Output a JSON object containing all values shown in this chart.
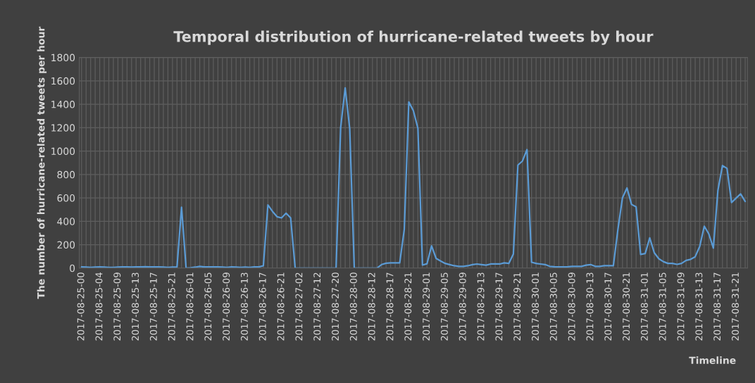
{
  "chart_data": {
    "type": "line",
    "title": "Temporal distribution of hurricane-related tweets by hour",
    "xlabel": "Timeline",
    "ylabel": "The number of hurricane-related tweets per hour",
    "categories": [
      "2017-08-25-00",
      null,
      null,
      null,
      "2017-08-25-04",
      null,
      null,
      null,
      "2017-08-25-09",
      null,
      null,
      null,
      "2017-08-25-13",
      null,
      null,
      null,
      "2017-08-25-17",
      null,
      null,
      null,
      "2017-08-25-21",
      null,
      null,
      null,
      "2017-08-26-01",
      null,
      null,
      null,
      "2017-08-26-05",
      null,
      null,
      null,
      "2017-08-26-09",
      null,
      null,
      null,
      "2017-08-26-13",
      null,
      null,
      null,
      "2017-08-26-17",
      null,
      null,
      null,
      "2017-08-26-21",
      null,
      null,
      null,
      "2017-08-27-02",
      null,
      null,
      null,
      "2017-08-27-12",
      null,
      null,
      null,
      "2017-08-27-20",
      null,
      null,
      null,
      "2017-08-28-00",
      null,
      null,
      null,
      "2017-08-28-12",
      null,
      null,
      null,
      "2017-08-28-17",
      null,
      null,
      null,
      "2017-08-28-21",
      null,
      null,
      null,
      "2017-08-29-01",
      null,
      null,
      null,
      "2017-08-29-05",
      null,
      null,
      null,
      "2017-08-29-09",
      null,
      null,
      null,
      "2017-08-29-13",
      null,
      null,
      null,
      "2017-08-29-17",
      null,
      null,
      null,
      "2017-08-29-21",
      null,
      null,
      null,
      "2017-08-30-01",
      null,
      null,
      null,
      "2017-08-30-05",
      null,
      null,
      null,
      "2017-08-30-09",
      null,
      null,
      null,
      "2017-08-30-13",
      null,
      null,
      null,
      "2017-08-30-17",
      null,
      null,
      null,
      "2017-08-30-21",
      null,
      null,
      null,
      "2017-08-31-01",
      null,
      null,
      null,
      "2017-08-31-05",
      null,
      null,
      null,
      "2017-08-31-09",
      null,
      null,
      null,
      "2017-08-31-13",
      null,
      null,
      null,
      "2017-08-31-17",
      null,
      null,
      null,
      "2017-08-31-21",
      null,
      null
    ],
    "series": [
      {
        "color": "#5b9bd5",
        "values": [
          10,
          8,
          5,
          8,
          10,
          8,
          5,
          5,
          8,
          10,
          10,
          8,
          10,
          10,
          12,
          10,
          10,
          10,
          8,
          5,
          8,
          10,
          520,
          0,
          3,
          8,
          15,
          10,
          10,
          10,
          10,
          8,
          5,
          10,
          8,
          5,
          8,
          5,
          10,
          10,
          20,
          540,
          485,
          439,
          429,
          469,
          429,
          0,
          0,
          0,
          0,
          0,
          0,
          0,
          0,
          0,
          0,
          1200,
          1540,
          1190,
          0,
          0,
          0,
          0,
          0,
          0,
          30,
          42,
          45,
          45,
          45,
          330,
          1420,
          1345,
          1195,
          26,
          37,
          190,
          83,
          60,
          40,
          30,
          20,
          15,
          15,
          20,
          30,
          35,
          30,
          25,
          35,
          35,
          35,
          45,
          40,
          120,
          880,
          915,
          1013,
          50,
          40,
          35,
          30,
          15,
          12,
          10,
          10,
          12,
          15,
          15,
          15,
          25,
          30,
          15,
          15,
          20,
          20,
          20,
          330,
          600,
          685,
          544,
          524,
          117,
          124,
          258,
          131,
          80,
          55,
          40,
          40,
          32,
          40,
          66,
          75,
          97,
          185,
          358,
          292,
          171,
          664,
          876,
          852,
          560,
          598,
          634,
          570
        ]
      }
    ],
    "ylim": [
      0,
      1800
    ],
    "yticks": [
      0,
      200,
      400,
      600,
      800,
      1000,
      1200,
      1400,
      1600,
      1800
    ],
    "grid": true,
    "marker": "none",
    "line_style": "solid"
  }
}
